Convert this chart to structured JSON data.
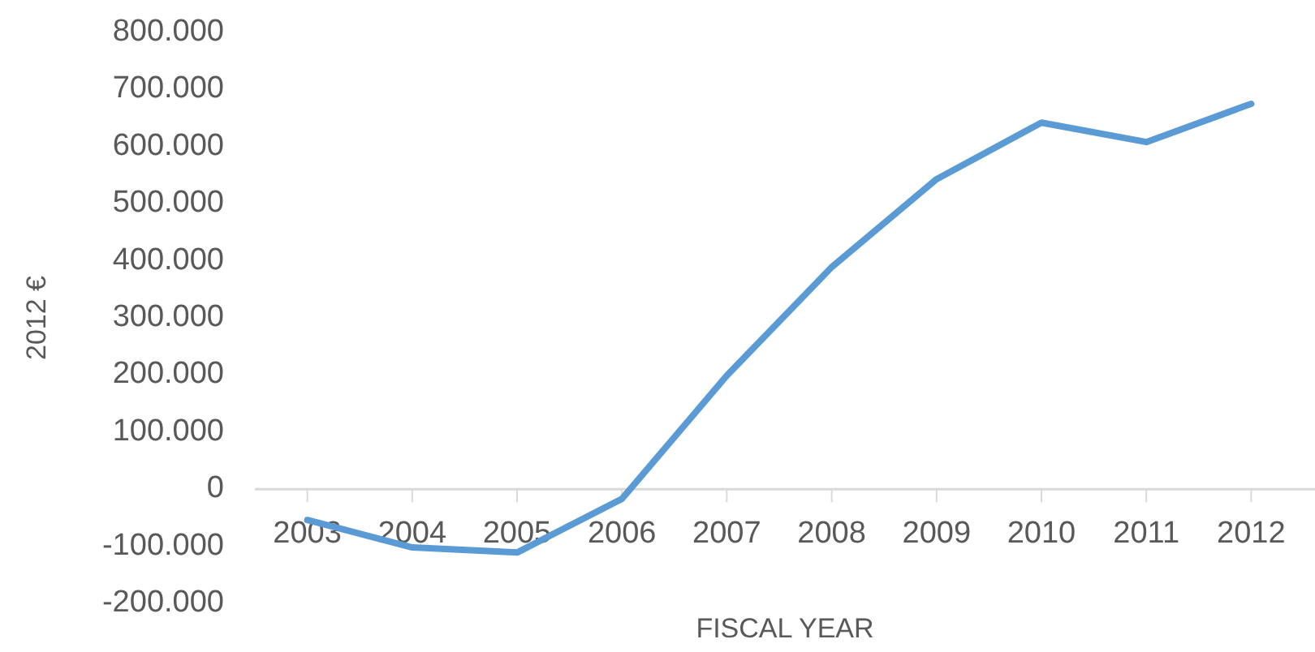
{
  "chart_data": {
    "type": "line",
    "xlabel": "FISCAL YEAR",
    "ylabel": "2012 €",
    "categories": [
      "2003",
      "2004",
      "2005",
      "2006",
      "2007",
      "2008",
      "2009",
      "2010",
      "2011",
      "2012"
    ],
    "series": [
      {
        "color": "#5b9bd5",
        "values": [
          -54000,
          -102000,
          -111000,
          -17000,
          199000,
          389000,
          543000,
          642000,
          608000,
          675000
        ]
      }
    ],
    "ylim": [
      -200000,
      800000
    ],
    "yticks": [
      {
        "value": -200000,
        "label": "-200.000"
      },
      {
        "value": -100000,
        "label": "-100.000"
      },
      {
        "value": 0,
        "label": "0"
      },
      {
        "value": 100000,
        "label": "100.000"
      },
      {
        "value": 200000,
        "label": "200.000"
      },
      {
        "value": 300000,
        "label": "300.000"
      },
      {
        "value": 400000,
        "label": "400.000"
      },
      {
        "value": 500000,
        "label": "500.000"
      },
      {
        "value": 600000,
        "label": "600.000"
      },
      {
        "value": 700000,
        "label": "700.000"
      },
      {
        "value": 800000,
        "label": "800.000"
      }
    ],
    "grid": false,
    "marker": "none",
    "line_style": "solid"
  }
}
